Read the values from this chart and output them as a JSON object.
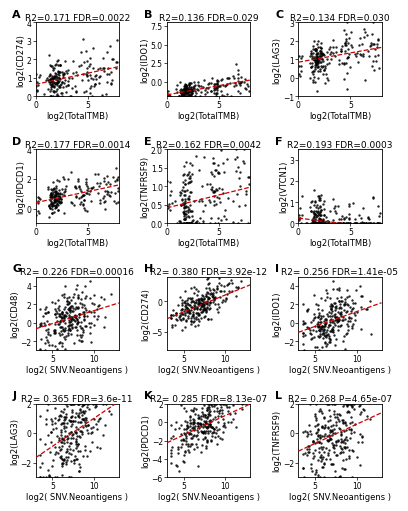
{
  "panels": [
    {
      "label": "A",
      "title": "R2=0.171 FDR=0.0022",
      "xlabel": "log2(TotalTMB)",
      "ylabel": "log2(CD274)",
      "xrange": [
        0,
        8
      ],
      "yticks_range": [
        0,
        4
      ],
      "slope": 0.12,
      "intercept": 0.65,
      "npoints": 200,
      "type": "tmb"
    },
    {
      "label": "B",
      "title": "R2=0.136 FDR=0.029",
      "xlabel": "log2(TotalTMB)",
      "ylabel": "log2(IDO1)",
      "xrange": [
        0,
        8
      ],
      "yticks_range": [
        -2,
        8
      ],
      "slope": 0.25,
      "intercept": -1.8,
      "npoints": 200,
      "type": "tmb"
    },
    {
      "label": "C",
      "title": "R2=0.134 FDR=0.030",
      "xlabel": "log2(TotalTMB)",
      "ylabel": "log2(LAG3)",
      "xrange": [
        0,
        8
      ],
      "yticks_range": [
        -1,
        3
      ],
      "slope": 0.1,
      "intercept": 0.85,
      "npoints": 200,
      "type": "tmb"
    },
    {
      "label": "D",
      "title": "R2=0.177 FDR=0.0014",
      "xlabel": "log2(TotalTMB)",
      "ylabel": "log2(PDCD1)",
      "xrange": [
        0,
        8
      ],
      "yticks_range": [
        -1,
        4
      ],
      "slope": 0.15,
      "intercept": 0.4,
      "npoints": 200,
      "type": "tmb"
    },
    {
      "label": "E",
      "title": "R2=0.162 FDR=0.0042",
      "xlabel": "log2(TotalTMB)",
      "ylabel": "log2(TNFRSF9)",
      "xrange": [
        0,
        8
      ],
      "yticks_range": [
        0,
        2
      ],
      "slope": 0.07,
      "intercept": 0.42,
      "npoints": 200,
      "type": "tmb"
    },
    {
      "label": "F",
      "title": "R2=0.193 FDR=0.0003",
      "xlabel": "log2(TotalTMB)",
      "ylabel": "log2(VTCN1)",
      "xrange": [
        0,
        8
      ],
      "yticks_range": [
        0,
        3.5
      ],
      "slope": -0.06,
      "intercept": 0.25,
      "npoints": 200,
      "type": "tmb"
    },
    {
      "label": "G",
      "title": "R2= 0.226 FDR=0.00016",
      "xlabel": "log2( SNV.Neoantigens )",
      "ylabel": "log2(CD48)",
      "xrange": [
        3,
        13
      ],
      "yticks_range": [
        -3,
        5
      ],
      "slope": 0.28,
      "intercept": -1.5,
      "npoints": 250,
      "type": "snv"
    },
    {
      "label": "H",
      "title": "R2= 0.380 FDR=3.92e-12",
      "xlabel": "log2( SNV.Neoantigens )",
      "ylabel": "log2(CD274)",
      "xrange": [
        3,
        13
      ],
      "yticks_range": [
        -8,
        4
      ],
      "slope": 0.55,
      "intercept": -4.5,
      "npoints": 250,
      "type": "snv"
    },
    {
      "label": "I",
      "title": "R2= 0.256 FDR=1.41e-05",
      "xlabel": "log2( SNV.Neoantigens )",
      "ylabel": "log2(IDO1)",
      "xrange": [
        3,
        13
      ],
      "yticks_range": [
        -3,
        5
      ],
      "slope": 0.32,
      "intercept": -2.0,
      "npoints": 250,
      "type": "snv"
    },
    {
      "label": "J",
      "title": "R2= 0.365 FDR=3.6e-11",
      "xlabel": "log2( SNV.Neoantigens )",
      "ylabel": "log2(LAG3)",
      "xrange": [
        3,
        13
      ],
      "yticks_range": [
        -3,
        2
      ],
      "slope": 0.38,
      "intercept": -2.8,
      "npoints": 250,
      "type": "snv"
    },
    {
      "label": "K",
      "title": "R2= 0.285 FDR=8.13e-07",
      "xlabel": "log2( SNV.Neoantigens )",
      "ylabel": "log2(PDCD1)",
      "xrange": [
        3,
        13
      ],
      "yticks_range": [
        -6,
        2
      ],
      "slope": 0.42,
      "intercept": -3.5,
      "npoints": 250,
      "type": "snv"
    },
    {
      "label": "L",
      "title": "R2= 0.268 P=4.65e-07",
      "xlabel": "log2( SNV.Neoantigens )",
      "ylabel": "log2(TNFRSF9)",
      "xrange": [
        3,
        13
      ],
      "yticks_range": [
        -3,
        2
      ],
      "slope": 0.26,
      "intercept": -2.0,
      "npoints": 250,
      "type": "snv"
    }
  ],
  "dot_color": "#000000",
  "line_color": "#cc0000",
  "dot_size": 3,
  "dot_alpha": 0.85,
  "bg_color": "#ffffff",
  "label_fontsize": 8,
  "title_fontsize": 6.5,
  "tick_fontsize": 5.5,
  "axis_label_fontsize": 6.0
}
